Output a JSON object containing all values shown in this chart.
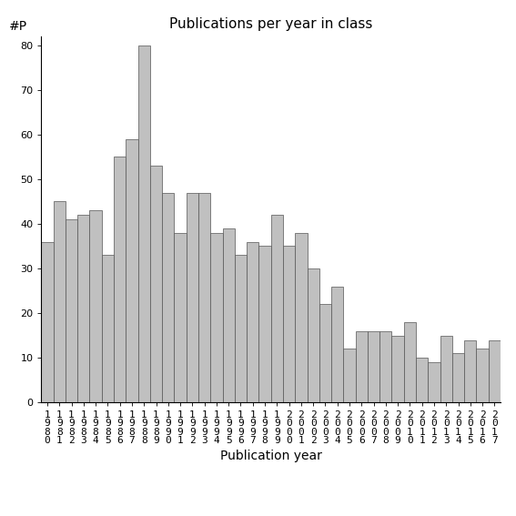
{
  "title": "Publications per year in class",
  "xlabel": "Publication year",
  "ylabel": "#P",
  "bar_color": "#c0c0c0",
  "bar_edge_color": "#555555",
  "background_color": "#ffffff",
  "years": [
    1980,
    1981,
    1982,
    1983,
    1984,
    1985,
    1986,
    1987,
    1988,
    1989,
    1990,
    1991,
    1992,
    1993,
    1994,
    1995,
    1996,
    1997,
    1998,
    1999,
    2000,
    2001,
    2002,
    2003,
    2004,
    2005,
    2006,
    2007,
    2008,
    2009,
    2010,
    2011,
    2012,
    2013,
    2014,
    2015,
    2016,
    2017
  ],
  "values": [
    36,
    45,
    41,
    42,
    43,
    33,
    55,
    59,
    80,
    53,
    47,
    38,
    47,
    47,
    38,
    39,
    33,
    36,
    35,
    42,
    35,
    38,
    30,
    22,
    26,
    12,
    16,
    16,
    16,
    15,
    18,
    10,
    9,
    15,
    11,
    14,
    12,
    14
  ],
  "ylim": [
    0,
    82
  ],
  "yticks": [
    0,
    10,
    20,
    30,
    40,
    50,
    60,
    70,
    80
  ],
  "title_fontsize": 11,
  "label_fontsize": 10,
  "tick_fontsize": 8
}
